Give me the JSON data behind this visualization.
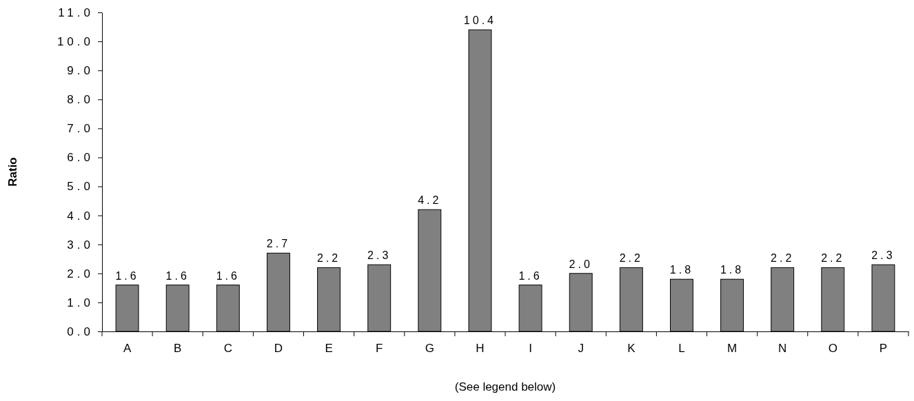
{
  "chart_data": {
    "type": "bar",
    "ylabel": "Ratio",
    "xlabel": "(See legend below)",
    "categories": [
      "A",
      "B",
      "C",
      "D",
      "E",
      "F",
      "G",
      "H",
      "I",
      "J",
      "K",
      "L",
      "M",
      "N",
      "O",
      "P"
    ],
    "values": [
      1.6,
      1.6,
      1.6,
      2.7,
      2.2,
      2.3,
      4.2,
      10.4,
      1.6,
      2.0,
      2.2,
      1.8,
      1.8,
      2.2,
      2.2,
      2.3
    ],
    "value_labels": [
      "1.6",
      "1.6",
      "1.6",
      "2.7",
      "2.2",
      "2.3",
      "4.2",
      "10.4",
      "1.6",
      "2.0",
      "2.2",
      "1.8",
      "1.8",
      "2.2",
      "2.2",
      "2.3"
    ],
    "color": "#808080",
    "ylim": [
      0,
      11
    ],
    "yticks": [
      {
        "value": 0,
        "label": "0.0"
      },
      {
        "value": 1,
        "label": "1.0"
      },
      {
        "value": 2,
        "label": "2.0"
      },
      {
        "value": 3,
        "label": "3.0"
      },
      {
        "value": 4,
        "label": "4.0"
      },
      {
        "value": 5,
        "label": "5.0"
      },
      {
        "value": 6,
        "label": "6.0"
      },
      {
        "value": 7,
        "label": "7.0"
      },
      {
        "value": 8,
        "label": "8.0"
      },
      {
        "value": 9,
        "label": "9.0"
      },
      {
        "value": 10,
        "label": "10.0"
      },
      {
        "value": 11,
        "label": "11.0"
      }
    ],
    "grid": false
  }
}
